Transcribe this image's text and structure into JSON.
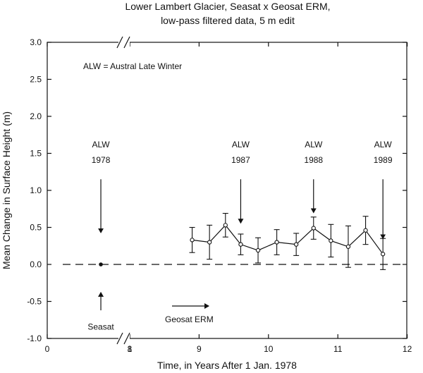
{
  "chart_data": {
    "type": "scatter",
    "title": "Lower Lambert Glacier, Seasat x Geosat ERM,",
    "subtitle": "low-pass filtered data, 5 m edit",
    "xlabel": "Time, in Years After 1 Jan. 1978",
    "ylabel": "Mean Change in Surface Height (m)",
    "ylim": [
      -1.0,
      3.0
    ],
    "x_break": {
      "from": 1,
      "to": 8
    },
    "x_ticks": [
      {
        "value": 0,
        "label": "0"
      },
      {
        "value": 1,
        "label": "1"
      },
      {
        "value": 8,
        "label": "8"
      },
      {
        "value": 9,
        "label": "9"
      },
      {
        "value": 10,
        "label": "10"
      },
      {
        "value": 11,
        "label": "11"
      },
      {
        "value": 12,
        "label": "12"
      }
    ],
    "y_ticks": [
      {
        "value": 3.0,
        "label": "3.0"
      },
      {
        "value": 2.5,
        "label": "2.5"
      },
      {
        "value": 2.0,
        "label": "2.0"
      },
      {
        "value": 1.5,
        "label": "1.5"
      },
      {
        "value": 1.0,
        "label": "1.0"
      },
      {
        "value": 0.5,
        "label": "0.5"
      },
      {
        "value": 0.0,
        "label": "0.0"
      },
      {
        "value": -0.5,
        "label": "-0.5"
      },
      {
        "value": -1.0,
        "label": "-1.0"
      }
    ],
    "zero_line": 0.0,
    "seasat_point": {
      "x": 0.65,
      "y": 0.0
    },
    "geosat_series": {
      "x": [
        8.9,
        9.15,
        9.38,
        9.6,
        9.85,
        10.12,
        10.4,
        10.65,
        10.9,
        11.15,
        11.4,
        11.65
      ],
      "y": [
        0.33,
        0.3,
        0.53,
        0.27,
        0.19,
        0.3,
        0.27,
        0.49,
        0.32,
        0.24,
        0.46,
        0.14
      ],
      "err": [
        0.17,
        0.23,
        0.16,
        0.14,
        0.17,
        0.17,
        0.15,
        0.15,
        0.22,
        0.28,
        0.19,
        0.21
      ]
    },
    "legend_note": "ALW = Austral Late Winter",
    "alw_arrows": [
      {
        "label": "ALW",
        "year": "1978",
        "x": 0.65,
        "y_from": 1.15,
        "y_to": 0.43
      },
      {
        "label": "ALW",
        "year": "1987",
        "x": 9.6,
        "y_from": 1.15,
        "y_to": 0.56
      },
      {
        "label": "ALW",
        "year": "1988",
        "x": 10.65,
        "y_from": 1.15,
        "y_to": 0.7
      },
      {
        "label": "ALW",
        "year": "1989",
        "x": 11.65,
        "y_from": 1.15,
        "y_to": 0.35
      }
    ],
    "seasat_label": "Seasat",
    "geosat_label": "Geosat ERM"
  }
}
